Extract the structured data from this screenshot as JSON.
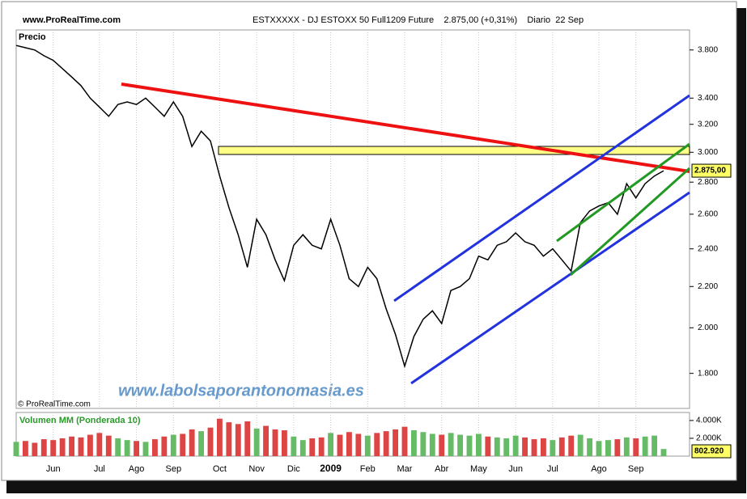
{
  "header": {
    "site": "www.ProRealTime.com",
    "instrument": "ESTXXXXX - DJ ESTOXX 50 Full1209 Future    2.875,00 (+0,31%)    Diario  22 Sep",
    "copyright": "© ProRealTime.com",
    "watermark": "www.labolsaporantonomasia.es"
  },
  "chart_data": [
    {
      "type": "line",
      "title": "Precio",
      "color": "#000000",
      "log_scale": true,
      "values": [
        3840,
        3820,
        3800,
        3750,
        3710,
        3640,
        3570,
        3500,
        3400,
        3330,
        3260,
        3350,
        3370,
        3350,
        3400,
        3330,
        3260,
        3370,
        3260,
        3040,
        3150,
        3080,
        2840,
        2640,
        2480,
        2300,
        2570,
        2480,
        2340,
        2230,
        2420,
        2480,
        2420,
        2400,
        2570,
        2420,
        2240,
        2200,
        2300,
        2240,
        2090,
        1970,
        1830,
        1960,
        2040,
        2080,
        2020,
        2180,
        2200,
        2240,
        2360,
        2340,
        2420,
        2440,
        2490,
        2440,
        2420,
        2360,
        2400,
        2340,
        2280,
        2550,
        2620,
        2650,
        2670,
        2600,
        2790,
        2700,
        2790,
        2840,
        2875
      ],
      "last_label": "2.875,00",
      "ylim": [
        1660,
        3980
      ],
      "yticks": [
        {
          "value": 1800,
          "label": "1.800"
        },
        {
          "value": 2000,
          "label": "2.000"
        },
        {
          "value": 2200,
          "label": "2.200"
        },
        {
          "value": 2400,
          "label": "2.400"
        },
        {
          "value": 2600,
          "label": "2.600"
        },
        {
          "value": 2800,
          "label": "2.800"
        },
        {
          "value": 3000,
          "label": "3.000"
        },
        {
          "value": 3200,
          "label": "3.200"
        },
        {
          "value": 3400,
          "label": "3.400"
        },
        {
          "value": 3800,
          "label": "3.800"
        }
      ]
    },
    {
      "type": "bar",
      "title": "Volumen MM (Ponderada 10)",
      "up_color": "#66bb66",
      "down_color": "#dd4444",
      "categories": [
        null,
        null,
        null,
        null,
        "Jun",
        null,
        null,
        null,
        null,
        "Jul",
        null,
        null,
        null,
        "Ago",
        null,
        null,
        null,
        "Sep",
        null,
        null,
        null,
        null,
        "Oct",
        null,
        null,
        null,
        "Nov",
        null,
        null,
        null,
        "Dic",
        null,
        null,
        null,
        "2009",
        null,
        null,
        null,
        "Feb",
        null,
        null,
        null,
        "Mar",
        null,
        null,
        null,
        "Abr",
        null,
        null,
        null,
        "May",
        null,
        null,
        null,
        "Jun",
        null,
        null,
        null,
        "Jul",
        null,
        null,
        null,
        null,
        "Ago",
        null,
        null,
        null,
        "Sep",
        null,
        null,
        null
      ],
      "values": [
        1600,
        1700,
        1500,
        1900,
        1800,
        2000,
        2200,
        2100,
        2400,
        2600,
        2300,
        2000,
        1800,
        1700,
        1600,
        1900,
        2200,
        2400,
        2500,
        3000,
        2800,
        3200,
        4200,
        3800,
        3600,
        3900,
        3100,
        3400,
        3000,
        2900,
        2200,
        1800,
        2000,
        2100,
        2600,
        2400,
        2700,
        2500,
        2300,
        2600,
        2800,
        3000,
        3300,
        2900,
        2700,
        2500,
        2400,
        2600,
        2400,
        2300,
        2500,
        2200,
        2100,
        2000,
        2300,
        2100,
        1900,
        2000,
        1800,
        2100,
        2300,
        2400,
        2000,
        1700,
        1800,
        1900,
        2100,
        2000,
        2200,
        2300,
        802.92
      ],
      "last_label": "802.920",
      "ylim": [
        0,
        4900
      ],
      "yticks": [
        {
          "value": 2000,
          "label": "2.000K"
        },
        {
          "value": 4000,
          "label": "4.000K"
        }
      ]
    }
  ]
}
